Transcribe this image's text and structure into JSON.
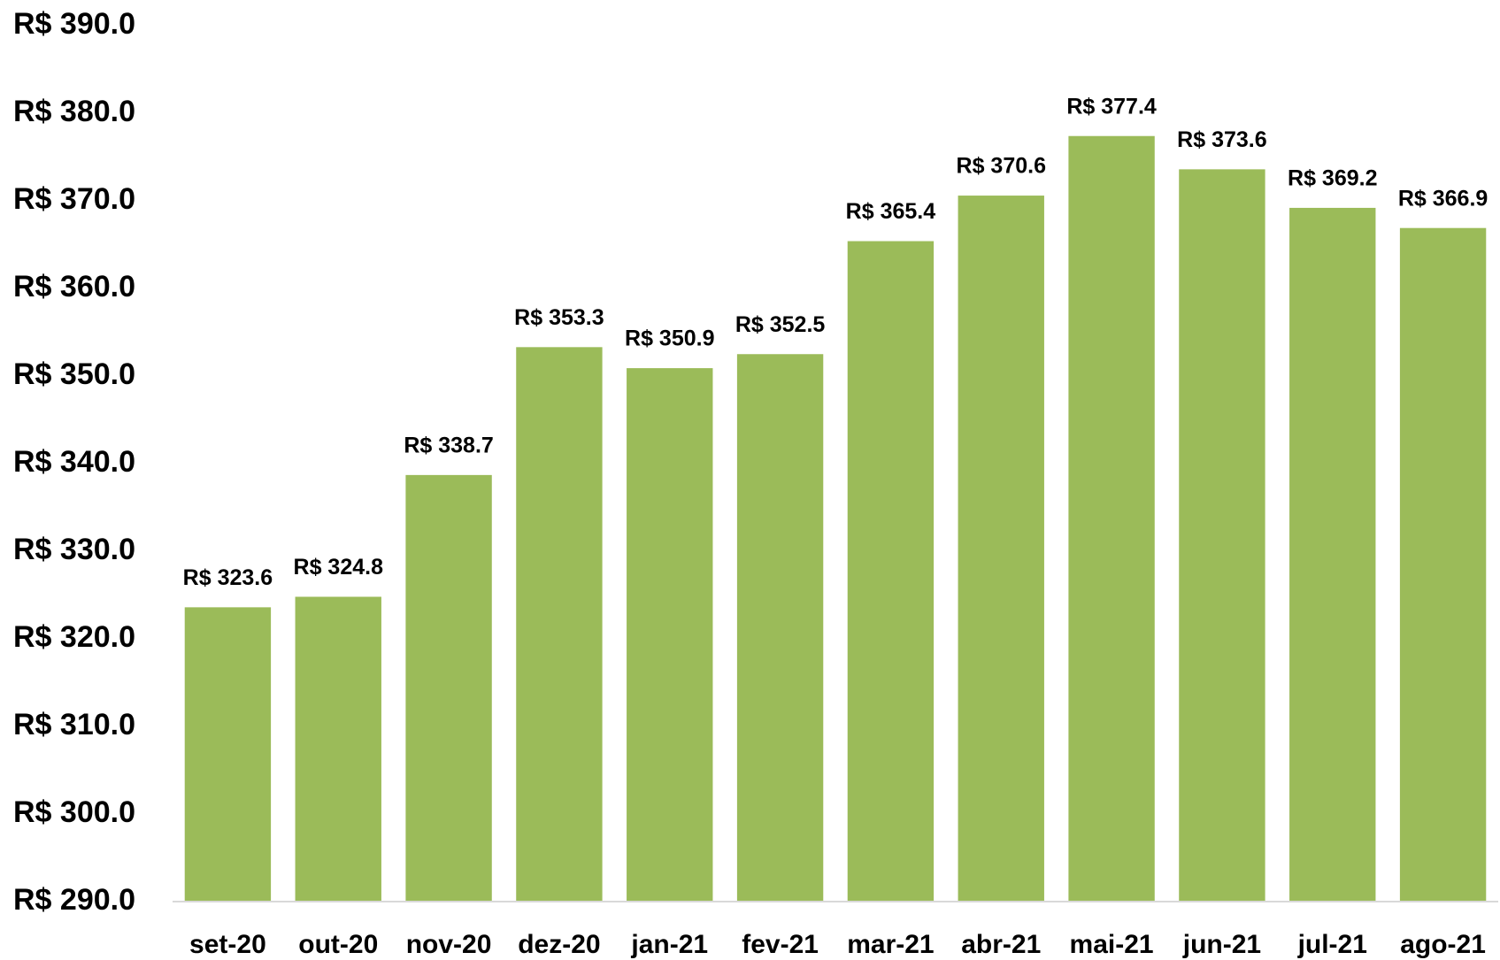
{
  "chart_data": {
    "type": "bar",
    "categories": [
      "set-20",
      "out-20",
      "nov-20",
      "dez-20",
      "jan-21",
      "fev-21",
      "mar-21",
      "abr-21",
      "mai-21",
      "jun-21",
      "jul-21",
      "ago-21"
    ],
    "values": [
      323.6,
      324.8,
      338.7,
      353.3,
      350.9,
      352.5,
      365.4,
      370.6,
      377.4,
      373.6,
      369.2,
      366.9
    ],
    "value_labels": [
      "R$ 323.6",
      "R$ 324.8",
      "R$ 338.7",
      "R$ 353.3",
      "R$ 350.9",
      "R$ 352.5",
      "R$ 365.4",
      "R$ 370.6",
      "R$ 377.4",
      "R$ 373.6",
      "R$ 369.2",
      "R$ 366.9"
    ],
    "color": "#9bbb59",
    "ylim": [
      290,
      390
    ],
    "yticks": [
      {
        "value": 290,
        "label": "R$ 290.0"
      },
      {
        "value": 300,
        "label": "R$ 300.0"
      },
      {
        "value": 310,
        "label": "R$ 310.0"
      },
      {
        "value": 320,
        "label": "R$ 320.0"
      },
      {
        "value": 330,
        "label": "R$ 330.0"
      },
      {
        "value": 340,
        "label": "R$ 340.0"
      },
      {
        "value": 350,
        "label": "R$ 350.0"
      },
      {
        "value": 360,
        "label": "R$ 360.0"
      },
      {
        "value": 370,
        "label": "R$ 370.0"
      },
      {
        "value": 380,
        "label": "R$ 380.0"
      },
      {
        "value": 390,
        "label": "R$ 390.0"
      }
    ],
    "grid": false
  }
}
